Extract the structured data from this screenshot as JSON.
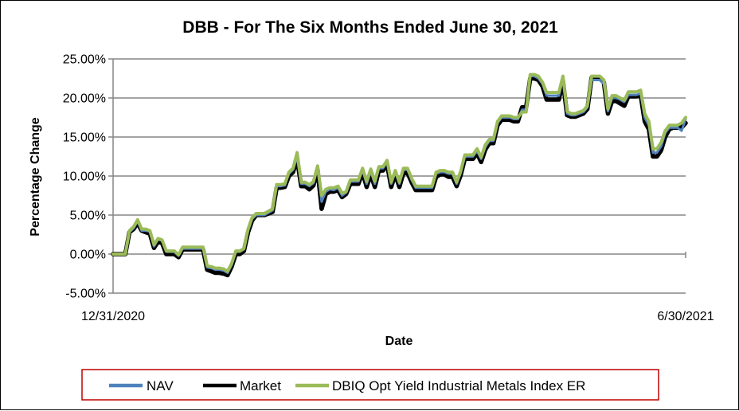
{
  "chart_data": {
    "type": "line",
    "title": "DBB - For The Six Months Ended June 30, 2021",
    "xlabel": "Date",
    "ylabel": "Percentage Change",
    "x_tick_labels": [
      "12/31/2020",
      "6/30/2021"
    ],
    "y_ticks": [
      -5,
      0,
      5,
      10,
      15,
      20,
      25
    ],
    "y_tick_labels": [
      "-5.00%",
      "0.00%",
      "5.00%",
      "10.00%",
      "15.00%",
      "20.00%",
      "25.00%"
    ],
    "ylim": [
      -5,
      25
    ],
    "grid": true,
    "legend_position": "bottom",
    "series": [
      {
        "name": "NAV",
        "color": "#4f81bd",
        "values": [
          0.0,
          0.0,
          0.0,
          0.0,
          2.8,
          3.3,
          4.2,
          3.0,
          3.0,
          2.9,
          1.0,
          1.9,
          1.7,
          0.3,
          0.3,
          0.3,
          -0.2,
          0.7,
          0.7,
          0.7,
          0.7,
          0.7,
          0.7,
          -1.7,
          -1.8,
          -2.0,
          -2.0,
          -2.1,
          -2.4,
          -1.4,
          0.3,
          0.3,
          0.6,
          3.0,
          4.5,
          5.0,
          5.0,
          5.0,
          5.3,
          5.6,
          8.7,
          8.7,
          8.8,
          10.3,
          10.8,
          12.5,
          9.0,
          9.0,
          8.7,
          9.1,
          11.0,
          6.7,
          8.0,
          8.3,
          8.2,
          8.5,
          7.5,
          7.9,
          9.3,
          9.3,
          9.3,
          10.8,
          9.0,
          10.6,
          9.0,
          11.0,
          11.0,
          11.8,
          9.0,
          10.5,
          9.0,
          10.8,
          10.8,
          9.5,
          8.5,
          8.5,
          8.5,
          8.5,
          8.5,
          10.3,
          10.5,
          10.5,
          10.3,
          10.3,
          9.0,
          10.4,
          12.5,
          12.5,
          12.5,
          13.2,
          12.2,
          13.7,
          14.5,
          14.5,
          16.8,
          17.5,
          17.5,
          17.5,
          17.3,
          17.3,
          18.5,
          18.5,
          22.8,
          22.8,
          22.5,
          21.8,
          20.3,
          20.3,
          20.3,
          20.3,
          22.5,
          18.0,
          17.8,
          17.8,
          18.0,
          18.2,
          18.8,
          22.3,
          22.3,
          22.3,
          21.8,
          18.3,
          20.0,
          20.0,
          19.8,
          19.5,
          20.4,
          20.4,
          20.4,
          20.6,
          17.5,
          16.5,
          13.0,
          13.0,
          13.8,
          15.5,
          16.2,
          16.2,
          16.2,
          15.8,
          17.3
        ]
      },
      {
        "name": "Market",
        "color": "#000000",
        "values": [
          0.0,
          0.0,
          0.0,
          0.0,
          2.8,
          3.2,
          4.0,
          3.0,
          2.8,
          2.6,
          0.8,
          1.6,
          1.4,
          0.0,
          0.0,
          0.0,
          -0.4,
          0.6,
          0.6,
          0.6,
          0.6,
          0.6,
          0.6,
          -2.0,
          -2.2,
          -2.4,
          -2.4,
          -2.5,
          -2.7,
          -1.6,
          0.0,
          0.0,
          0.4,
          2.8,
          4.3,
          5.0,
          5.0,
          5.0,
          5.2,
          5.4,
          8.5,
          8.5,
          8.6,
          10.0,
          10.5,
          12.2,
          8.7,
          8.7,
          8.3,
          8.8,
          10.8,
          5.8,
          7.7,
          8.0,
          8.0,
          8.2,
          7.3,
          7.7,
          9.0,
          9.0,
          9.0,
          10.5,
          8.6,
          10.2,
          8.6,
          10.7,
          10.7,
          11.5,
          8.6,
          10.2,
          8.6,
          10.4,
          10.4,
          9.2,
          8.2,
          8.2,
          8.2,
          8.2,
          8.2,
          9.9,
          10.2,
          10.2,
          9.9,
          9.9,
          8.7,
          10.1,
          12.2,
          12.2,
          12.2,
          12.9,
          11.8,
          13.4,
          14.2,
          14.2,
          16.5,
          17.2,
          17.2,
          17.2,
          17.0,
          17.0,
          18.8,
          18.8,
          22.5,
          22.5,
          22.3,
          21.5,
          19.8,
          19.8,
          19.8,
          19.8,
          22.2,
          17.8,
          17.6,
          17.6,
          17.8,
          18.0,
          18.6,
          22.6,
          22.6,
          22.6,
          22.0,
          18.0,
          19.6,
          19.6,
          19.3,
          19.0,
          20.2,
          20.2,
          20.2,
          20.4,
          17.0,
          16.0,
          12.5,
          12.5,
          13.3,
          15.0,
          16.0,
          16.2,
          16.2,
          16.2,
          16.8
        ]
      },
      {
        "name": "DBIQ Opt Yield Industrial Metals Index ER",
        "color": "#9bbb59",
        "values": [
          0.0,
          0.0,
          0.0,
          0.0,
          3.0,
          3.5,
          4.4,
          3.2,
          3.2,
          3.0,
          1.2,
          2.0,
          1.8,
          0.4,
          0.4,
          0.4,
          -0.1,
          0.9,
          0.9,
          0.9,
          0.9,
          0.9,
          0.9,
          -1.5,
          -1.6,
          -1.8,
          -1.8,
          -1.9,
          -2.2,
          -1.2,
          0.4,
          0.4,
          0.7,
          3.2,
          4.7,
          5.2,
          5.2,
          5.2,
          5.5,
          5.8,
          8.9,
          8.9,
          9.0,
          10.5,
          11.0,
          13.0,
          9.2,
          9.2,
          8.9,
          9.3,
          11.3,
          7.5,
          8.3,
          8.5,
          8.5,
          8.7,
          7.8,
          8.0,
          9.5,
          9.5,
          9.5,
          11.0,
          9.3,
          10.9,
          9.3,
          11.2,
          11.2,
          12.0,
          9.2,
          10.7,
          9.2,
          11.0,
          11.0,
          9.7,
          8.7,
          8.7,
          8.7,
          8.7,
          8.7,
          10.5,
          10.7,
          10.7,
          10.5,
          10.5,
          9.2,
          10.6,
          12.7,
          12.7,
          12.7,
          13.5,
          12.4,
          14.0,
          14.7,
          14.7,
          17.0,
          17.7,
          17.7,
          17.7,
          17.5,
          17.5,
          18.2,
          18.2,
          23.0,
          23.0,
          22.8,
          22.0,
          20.7,
          20.7,
          20.7,
          20.7,
          22.8,
          18.3,
          18.0,
          18.0,
          18.2,
          18.4,
          19.0,
          22.8,
          22.8,
          22.8,
          22.3,
          18.6,
          20.3,
          20.3,
          20.0,
          19.7,
          20.8,
          20.8,
          20.8,
          21.0,
          18.0,
          17.0,
          13.5,
          13.5,
          14.3,
          15.8,
          16.5,
          16.5,
          16.5,
          16.8,
          17.5
        ]
      }
    ]
  }
}
